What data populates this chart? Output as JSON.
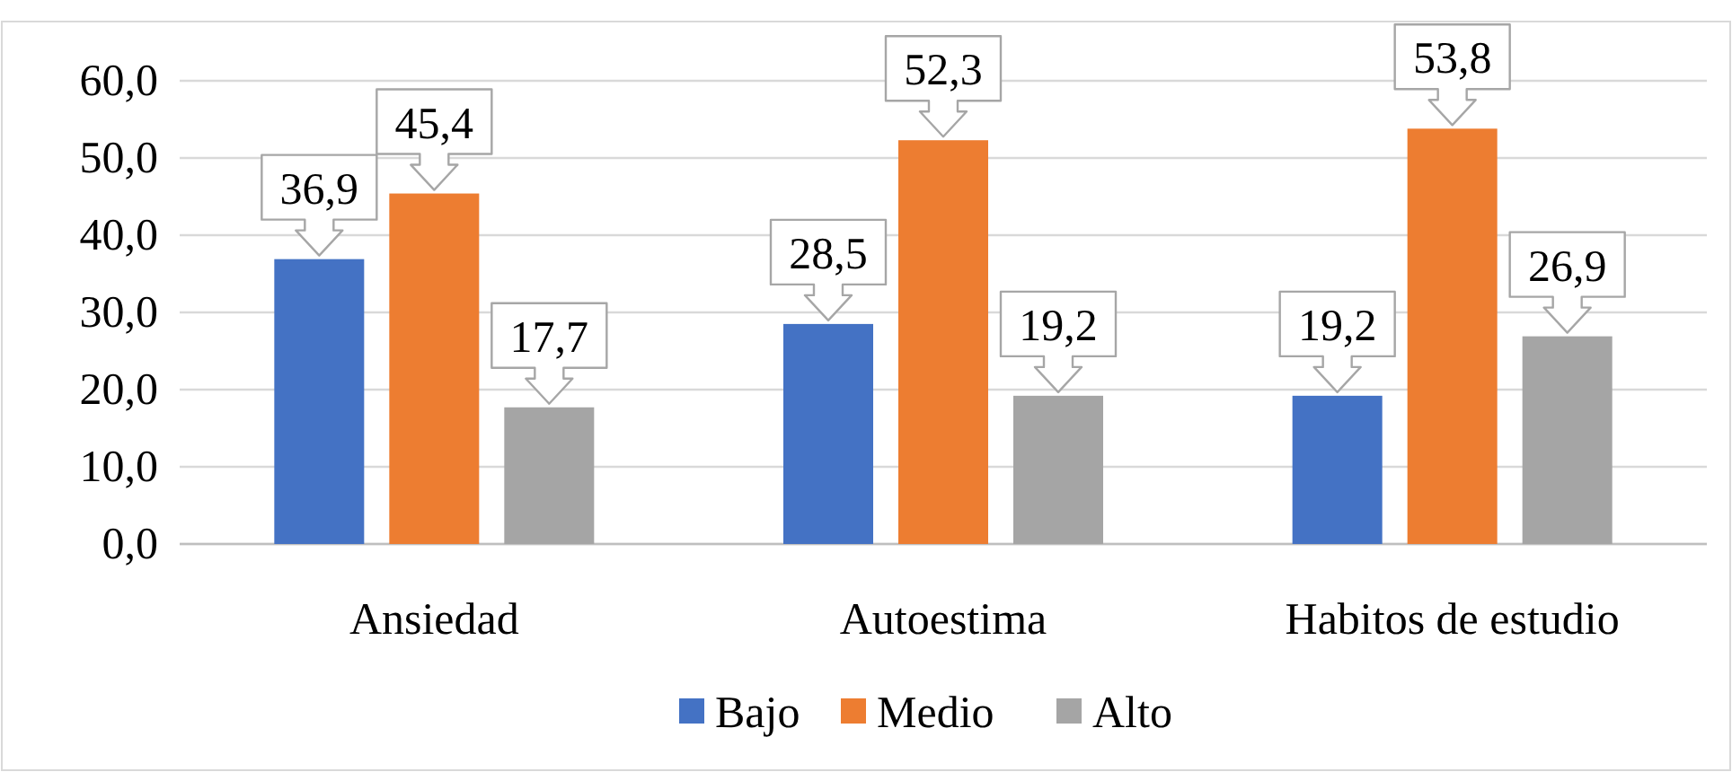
{
  "chart_data": {
    "type": "bar",
    "categories": [
      "Ansiedad",
      "Autoestima",
      "Habitos de estudio"
    ],
    "series": [
      {
        "name": "Bajo",
        "color": "#4472c4",
        "values": [
          36.9,
          28.5,
          19.2
        ],
        "value_labels": [
          "36,9",
          "28,5",
          "19,2"
        ]
      },
      {
        "name": "Medio",
        "color": "#ed7d31",
        "values": [
          45.4,
          52.3,
          53.8
        ],
        "value_labels": [
          "45,4",
          "52,3",
          "53,8"
        ]
      },
      {
        "name": "Alto",
        "color": "#a5a5a5",
        "values": [
          17.7,
          19.2,
          26.9
        ],
        "value_labels": [
          "17,7",
          "19,2",
          "26,9"
        ]
      }
    ],
    "ylim": [
      0,
      60
    ],
    "yticks": [
      {
        "value": 0,
        "label": "0,0"
      },
      {
        "value": 10,
        "label": "10,0"
      },
      {
        "value": 20,
        "label": "20,0"
      },
      {
        "value": 30,
        "label": "30,0"
      },
      {
        "value": 40,
        "label": "40,0"
      },
      {
        "value": 50,
        "label": "50,0"
      },
      {
        "value": 60,
        "label": "60,0"
      }
    ],
    "grid": "y",
    "legend": "bottom"
  }
}
